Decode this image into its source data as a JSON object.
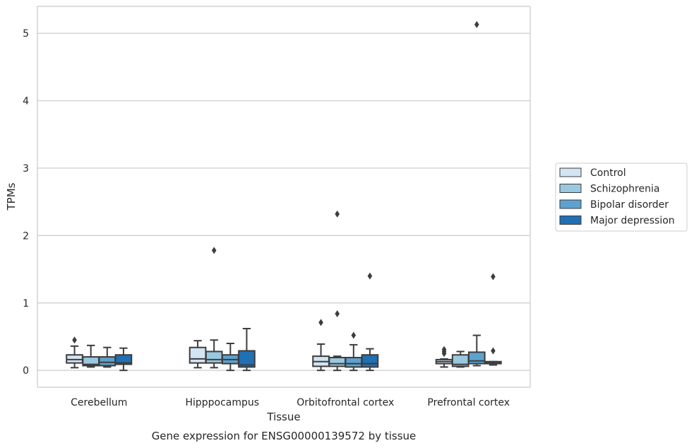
{
  "chart_data": {
    "type": "box",
    "title": "Gene expression for ENSG00000139572 by tissue",
    "xlabel": "Tissue",
    "ylabel": "TPMs",
    "ylim": [
      -0.25,
      5.4
    ],
    "yticks": [
      0,
      1,
      2,
      3,
      4,
      5
    ],
    "grid": "horizontal",
    "legend_position": "right",
    "categories": [
      "Cerebellum",
      "Hipppocampus",
      "Orbitofrontal cortex",
      "Prefrontal cortex"
    ],
    "series": [
      {
        "name": "Control",
        "color": "#d3e4f3",
        "boxes": [
          {
            "whislo": 0.04,
            "q1": 0.11,
            "med": 0.16,
            "q3": 0.23,
            "whishi": 0.36,
            "fliers": [
              0.45
            ]
          },
          {
            "whislo": 0.04,
            "q1": 0.11,
            "med": 0.17,
            "q3": 0.34,
            "whishi": 0.44,
            "fliers": []
          },
          {
            "whislo": 0.0,
            "q1": 0.06,
            "med": 0.13,
            "q3": 0.21,
            "whishi": 0.39,
            "fliers": [
              0.71
            ]
          },
          {
            "whislo": 0.05,
            "q1": 0.1,
            "med": 0.13,
            "q3": 0.16,
            "whishi": 0.17,
            "fliers": [
              0.25,
              0.28,
              0.31
            ]
          }
        ]
      },
      {
        "name": "Schizophrenia",
        "color": "#9ac8e0",
        "boxes": [
          {
            "whislo": 0.05,
            "q1": 0.07,
            "med": 0.09,
            "q3": 0.2,
            "whishi": 0.37,
            "fliers": []
          },
          {
            "whislo": 0.04,
            "q1": 0.11,
            "med": 0.16,
            "q3": 0.28,
            "whishi": 0.45,
            "fliers": [
              1.78
            ]
          },
          {
            "whislo": 0.0,
            "q1": 0.06,
            "med": 0.1,
            "q3": 0.19,
            "whishi": 0.21,
            "fliers": [
              0.84,
              2.32
            ]
          },
          {
            "whislo": 0.05,
            "q1": 0.06,
            "med": 0.09,
            "q3": 0.23,
            "whishi": 0.28,
            "fliers": []
          }
        ]
      },
      {
        "name": "Bipolar disorder",
        "color": "#5da2cf",
        "boxes": [
          {
            "whislo": 0.05,
            "q1": 0.07,
            "med": 0.12,
            "q3": 0.2,
            "whishi": 0.34,
            "fliers": []
          },
          {
            "whislo": 0.0,
            "q1": 0.1,
            "med": 0.16,
            "q3": 0.23,
            "whishi": 0.4,
            "fliers": []
          },
          {
            "whislo": 0.0,
            "q1": 0.05,
            "med": 0.1,
            "q3": 0.19,
            "whishi": 0.38,
            "fliers": [
              0.52
            ]
          },
          {
            "whislo": 0.07,
            "q1": 0.1,
            "med": 0.14,
            "q3": 0.27,
            "whishi": 0.52,
            "fliers": [
              5.13
            ]
          }
        ]
      },
      {
        "name": "Major depression",
        "color": "#2070b4",
        "boxes": [
          {
            "whislo": 0.0,
            "q1": 0.09,
            "med": 0.11,
            "q3": 0.23,
            "whishi": 0.33,
            "fliers": []
          },
          {
            "whislo": 0.0,
            "q1": 0.05,
            "med": 0.08,
            "q3": 0.29,
            "whishi": 0.62,
            "fliers": []
          },
          {
            "whislo": 0.0,
            "q1": 0.05,
            "med": 0.1,
            "q3": 0.23,
            "whishi": 0.32,
            "fliers": [
              1.4
            ]
          },
          {
            "whislo": 0.08,
            "q1": 0.1,
            "med": 0.12,
            "q3": 0.13,
            "whishi": 0.13,
            "fliers": [
              0.29,
              1.39
            ]
          }
        ]
      }
    ]
  }
}
